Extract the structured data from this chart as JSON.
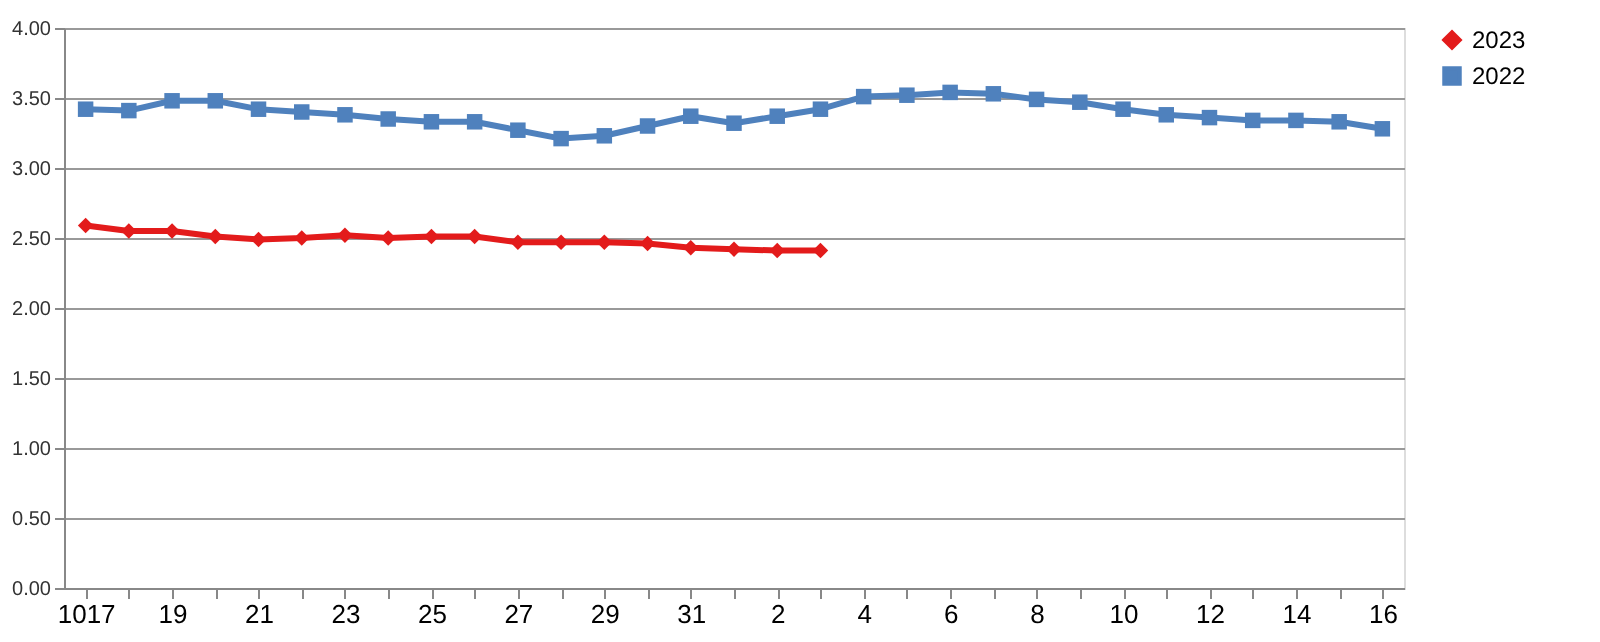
{
  "chart_data": {
    "type": "line",
    "categories": [
      "1017",
      null,
      "19",
      null,
      "21",
      null,
      "23",
      null,
      "25",
      null,
      "27",
      null,
      "29",
      null,
      "31",
      null,
      "2",
      null,
      "4",
      null,
      "6",
      null,
      "8",
      null,
      "10",
      null,
      "12",
      null,
      "14",
      null,
      "16"
    ],
    "series": [
      {
        "name": "2023",
        "color": "#e31b1b",
        "marker": "diamond",
        "values": [
          2.59,
          2.55,
          2.55,
          2.51,
          2.49,
          2.5,
          2.52,
          2.5,
          2.51,
          2.51,
          2.47,
          2.47,
          2.47,
          2.46,
          2.43,
          2.42,
          2.41,
          2.41,
          null,
          null,
          null,
          null,
          null,
          null,
          null,
          null,
          null,
          null,
          null,
          null,
          null
        ]
      },
      {
        "name": "2022",
        "color": "#4f81bd",
        "marker": "square",
        "values": [
          3.42,
          3.41,
          3.48,
          3.48,
          3.42,
          3.4,
          3.38,
          3.35,
          3.33,
          3.33,
          3.27,
          3.21,
          3.23,
          3.3,
          3.37,
          3.32,
          3.37,
          3.42,
          3.51,
          3.52,
          3.54,
          3.53,
          3.49,
          3.47,
          3.42,
          3.38,
          3.36,
          3.34,
          3.34,
          3.33,
          3.28
        ]
      }
    ],
    "ylim": [
      0,
      4
    ],
    "yticks": [
      {
        "value": 0,
        "label": "0.00"
      },
      {
        "value": 0.5,
        "label": "0.50"
      },
      {
        "value": 1,
        "label": "1.00"
      },
      {
        "value": 1.5,
        "label": "1.50"
      },
      {
        "value": 2,
        "label": "2.00"
      },
      {
        "value": 2.5,
        "label": "2.50"
      },
      {
        "value": 3,
        "label": "3.00"
      },
      {
        "value": 3.5,
        "label": "3.50"
      },
      {
        "value": 4,
        "label": "4.00"
      }
    ],
    "grid": "y",
    "legend": "right",
    "line_style": "solid"
  }
}
